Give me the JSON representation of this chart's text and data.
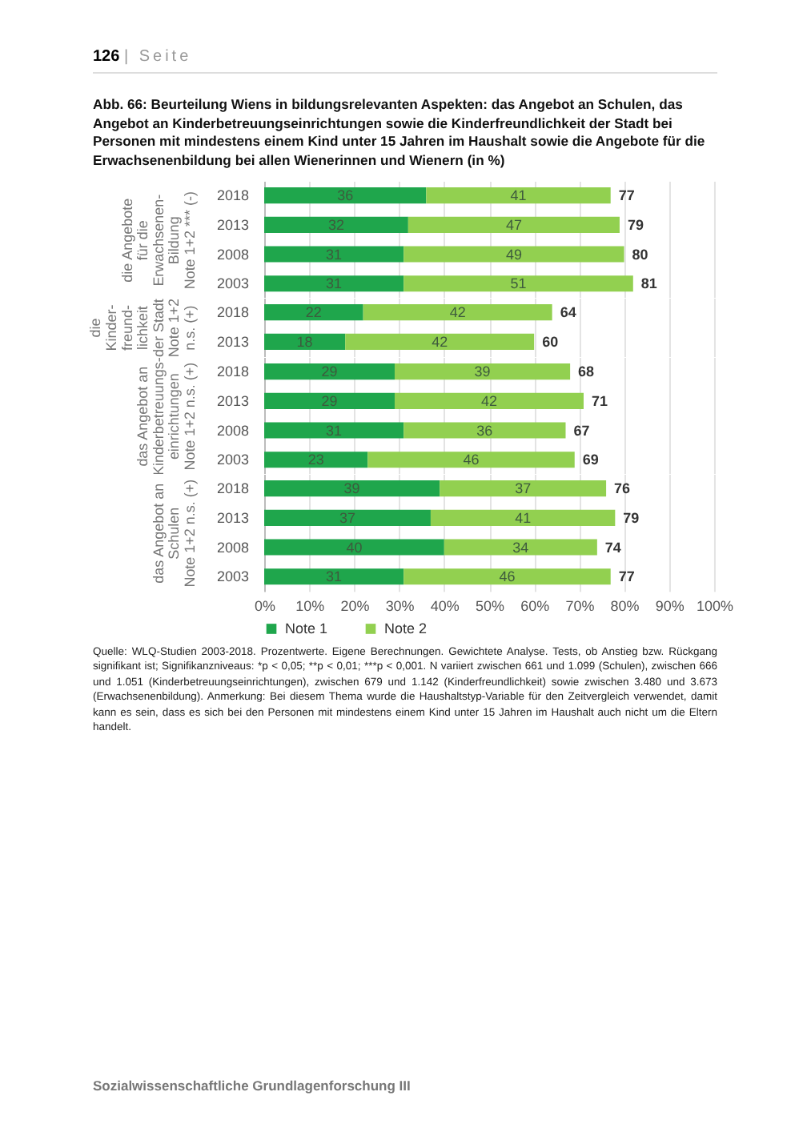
{
  "chart_data": [
    {
      "type": "bar",
      "orientation": "horizontal",
      "stacked": true,
      "title": "Abb. 66: Beurteilung Wiens in bildungsrelevanten Aspekten: das Angebot an Schulen, das Angebot an Kinderbetreuungseinrichtungen sowie die Kinderfreundlichkeit der Stadt bei Personen mit mindestens einem Kind unter 15 Jahren im Haushalt sowie die Angebote für die Erwachsenenbildung bei allen Wienerinnen und Wienern (in %)",
      "annotations": [
        "126 | Seite"
      ],
      "ylabel": "die Angebote\nfür die\nErwachsenen-\nBildung\nNote 1+2 *** (-)",
      "categories": [
        "2018",
        "2013",
        "2008",
        "2003"
      ],
      "series": [
        {
          "color": "#1fa64c",
          "values": [
            36,
            32,
            31,
            31
          ]
        },
        {
          "color": "#92d050",
          "values": [
            41,
            47,
            49,
            51
          ]
        }
      ],
      "totals": [
        "77",
        "79",
        "80",
        "81"
      ],
      "data_labels": true,
      "xlim": [
        0,
        100
      ],
      "xticks": [
        0,
        10,
        20,
        30,
        40,
        50,
        60,
        70,
        80,
        90,
        100
      ],
      "grid": "x",
      "tick_labels": "y"
    },
    {
      "type": "bar",
      "orientation": "horizontal",
      "stacked": true,
      "ylabel": "die\nKinder-\nfreund-\nlichkeit\nder Stadt\nNote 1+2\nn.s. (+)",
      "categories": [
        "2018",
        "2013"
      ],
      "series": [
        {
          "color": "#1fa64c",
          "values": [
            22,
            18
          ]
        },
        {
          "color": "#92d050",
          "values": [
            42,
            42
          ]
        }
      ],
      "totals": [
        "64",
        "60"
      ],
      "data_labels": true,
      "xlim": [
        0,
        100
      ],
      "xticks": [
        0,
        10,
        20,
        30,
        40,
        50,
        60,
        70,
        80,
        90,
        100
      ],
      "grid": "x",
      "tick_labels": "y"
    },
    {
      "type": "bar",
      "orientation": "horizontal",
      "stacked": true,
      "ylabel": "das Angebot an\nKinderbetreuungs-\neinrichtungen\nNote 1+2 n.s. (+)",
      "categories": [
        "2018",
        "2013",
        "2008",
        "2003"
      ],
      "series": [
        {
          "color": "#1fa64c",
          "values": [
            29,
            29,
            31,
            23
          ]
        },
        {
          "color": "#92d050",
          "values": [
            39,
            42,
            36,
            46
          ]
        }
      ],
      "totals": [
        "68",
        "71",
        "67",
        "69"
      ],
      "data_labels": true,
      "xlim": [
        0,
        100
      ],
      "xticks": [
        0,
        10,
        20,
        30,
        40,
        50,
        60,
        70,
        80,
        90,
        100
      ],
      "grid": "x",
      "tick_labels": "y"
    },
    {
      "type": "bar",
      "orientation": "horizontal",
      "stacked": true,
      "ylabel": "das Angebot an\nSchulen\nNote 1+2 n.s. (+)",
      "categories": [
        "2018",
        "2013",
        "2008",
        "2003"
      ],
      "series": [
        {
          "name": "Note 1",
          "color": "#1fa64c",
          "values": [
            39,
            37,
            40,
            31
          ]
        },
        {
          "name": "Note 2",
          "color": "#92d050",
          "values": [
            37,
            41,
            34,
            46
          ]
        }
      ],
      "totals": [
        "76",
        "79",
        "74",
        "77"
      ],
      "data_labels": true,
      "xlim": [
        0,
        100
      ],
      "xticks": [
        {
          "value": 0,
          "label": "0%"
        },
        {
          "value": 10,
          "label": "10%"
        },
        {
          "value": 20,
          "label": "20%"
        },
        {
          "value": 30,
          "label": "30%"
        },
        {
          "value": 40,
          "label": "40%"
        },
        {
          "value": 50,
          "label": "50%"
        },
        {
          "value": 60,
          "label": "60%"
        },
        {
          "value": 70,
          "label": "70%"
        },
        {
          "value": 80,
          "label": "80%"
        },
        {
          "value": 90,
          "label": "90%"
        },
        {
          "value": 100,
          "label": "100%"
        }
      ],
      "grid": "x",
      "legend": "bottom",
      "annotations": [
        "Quelle: WLQ-Studien 2003-2018. Prozentwerte. Eigene Berechnungen. Gewichtete Analyse. Tests, ob Anstieg bzw. Rückgang signifikant ist; Signifikanzniveaus: *p < 0,05; **p < 0,01; ***p < 0,001. N variiert zwischen 661 und 1.099 (Schulen), zwischen 666 und 1.051 (Kinderbetreuungseinrichtungen), zwischen 679 und 1.142 (Kinderfreundlichkeit) sowie zwischen 3.480 und 3.673 (Erwachsenenbildung). Anmerkung: Bei diesem Thema wurde die Haushaltstyp-Variable für den Zeitvergleich verwendet, damit kann es sein, dass es sich bei den Personen mit mindestens einem Kind unter 15 Jahren im Haushalt auch nicht um die Eltern handelt.",
        "Sozialwissenschaftliche Grundlagenforschung III"
      ]
    }
  ]
}
